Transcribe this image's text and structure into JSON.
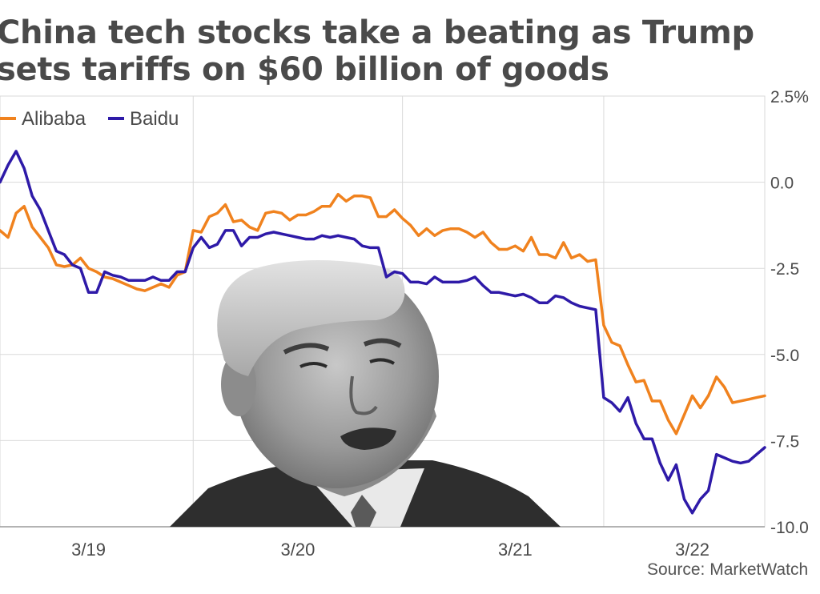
{
  "title": "China tech stocks take a beating as Trump\nsets tariffs on $60 billion of goods",
  "source": "Source: MarketWatch",
  "colors": {
    "alibaba": "#f0821e",
    "baidu": "#2e1aa8",
    "grid": "#d9d9d9",
    "text": "#4a4a4a"
  },
  "photo": {
    "subject": "portrait-photo",
    "description_icon": "person-portrait-icon"
  },
  "chart_data": {
    "type": "line",
    "title": "China tech stocks take a beating as Trump sets tariffs on $60 billion of goods",
    "xlabel": "",
    "ylabel": "",
    "ylim": [
      -10.0,
      2.5
    ],
    "yticks": [
      2.5,
      0.0,
      -2.5,
      -5.0,
      -7.5,
      -10.0
    ],
    "ytick_labels": [
      "2.5%",
      "0.0",
      "-2.5",
      "-5.0",
      "-7.5",
      "-10.0"
    ],
    "xlim": [
      0,
      4.75
    ],
    "xticks": [
      0.55,
      1.85,
      3.2,
      4.3
    ],
    "xtick_labels": [
      "3/19",
      "3/20",
      "3/21",
      "3/22"
    ],
    "legend": "top-left",
    "grid": true,
    "series": [
      {
        "name": "Alibaba",
        "x": [
          0,
          0.05,
          0.1,
          0.15,
          0.2,
          0.25,
          0.3,
          0.35,
          0.4,
          0.45,
          0.5,
          0.55,
          0.6,
          0.65,
          0.7,
          0.75,
          0.8,
          0.85,
          0.9,
          0.95,
          1.0,
          1.05,
          1.1,
          1.15,
          1.2,
          1.25,
          1.3,
          1.35,
          1.4,
          1.45,
          1.5,
          1.55,
          1.6,
          1.65,
          1.7,
          1.75,
          1.8,
          1.85,
          1.9,
          1.95,
          2.0,
          2.05,
          2.1,
          2.15,
          2.2,
          2.25,
          2.3,
          2.35,
          2.4,
          2.45,
          2.5,
          2.55,
          2.6,
          2.65,
          2.7,
          2.75,
          2.8,
          2.85,
          2.9,
          2.95,
          3.0,
          3.05,
          3.1,
          3.15,
          3.2,
          3.25,
          3.3,
          3.35,
          3.4,
          3.45,
          3.5,
          3.55,
          3.6,
          3.65,
          3.7,
          3.75,
          3.8,
          3.85,
          3.9,
          3.95,
          4.0,
          4.05,
          4.1,
          4.15,
          4.2,
          4.25,
          4.3,
          4.35,
          4.4,
          4.45,
          4.5,
          4.55,
          4.6,
          4.65,
          4.7,
          4.75
        ],
        "values": [
          -1.4,
          -1.6,
          -0.9,
          -0.7,
          -1.3,
          -1.6,
          -1.9,
          -2.4,
          -2.45,
          -2.4,
          -2.2,
          -2.5,
          -2.6,
          -2.75,
          -2.8,
          -2.9,
          -3.0,
          -3.1,
          -3.15,
          -3.05,
          -2.95,
          -3.05,
          -2.7,
          -2.6,
          -1.4,
          -1.45,
          -1.0,
          -0.9,
          -0.65,
          -1.15,
          -1.1,
          -1.3,
          -1.4,
          -0.9,
          -0.85,
          -0.9,
          -1.1,
          -0.95,
          -0.95,
          -0.85,
          -0.7,
          -0.7,
          -0.35,
          -0.55,
          -0.4,
          -0.4,
          -0.45,
          -1.0,
          -1.0,
          -0.8,
          -1.05,
          -1.25,
          -1.55,
          -1.35,
          -1.55,
          -1.4,
          -1.35,
          -1.35,
          -1.45,
          -1.6,
          -1.45,
          -1.75,
          -1.95,
          -1.95,
          -1.85,
          -2.0,
          -1.6,
          -2.1,
          -2.1,
          -2.2,
          -1.75,
          -2.2,
          -2.1,
          -2.3,
          -2.25,
          -4.15,
          -4.65,
          -4.75,
          -5.3,
          -5.8,
          -5.75,
          -6.35,
          -6.35,
          -6.9,
          -7.3,
          -6.75,
          -6.2,
          -6.55,
          -6.2,
          -5.65,
          -5.95,
          -6.4,
          -6.35,
          -6.3,
          -6.25,
          -6.2
        ]
      },
      {
        "name": "Baidu",
        "x": [
          0,
          0.05,
          0.1,
          0.15,
          0.2,
          0.25,
          0.3,
          0.35,
          0.4,
          0.45,
          0.5,
          0.55,
          0.6,
          0.65,
          0.7,
          0.75,
          0.8,
          0.85,
          0.9,
          0.95,
          1.0,
          1.05,
          1.1,
          1.15,
          1.2,
          1.25,
          1.3,
          1.35,
          1.4,
          1.45,
          1.5,
          1.55,
          1.6,
          1.65,
          1.7,
          1.75,
          1.8,
          1.85,
          1.9,
          1.95,
          2.0,
          2.05,
          2.1,
          2.15,
          2.2,
          2.25,
          2.3,
          2.35,
          2.4,
          2.45,
          2.5,
          2.55,
          2.6,
          2.65,
          2.7,
          2.75,
          2.8,
          2.85,
          2.9,
          2.95,
          3.0,
          3.05,
          3.1,
          3.15,
          3.2,
          3.25,
          3.3,
          3.35,
          3.4,
          3.45,
          3.5,
          3.55,
          3.6,
          3.65,
          3.7,
          3.75,
          3.8,
          3.85,
          3.9,
          3.95,
          4.0,
          4.05,
          4.1,
          4.15,
          4.2,
          4.25,
          4.3,
          4.35,
          4.4,
          4.45,
          4.5,
          4.55,
          4.6,
          4.65,
          4.7,
          4.75
        ],
        "values": [
          0.0,
          0.5,
          0.9,
          0.4,
          -0.4,
          -0.8,
          -1.4,
          -2.0,
          -2.1,
          -2.4,
          -2.5,
          -3.2,
          -3.2,
          -2.6,
          -2.7,
          -2.75,
          -2.85,
          -2.85,
          -2.85,
          -2.75,
          -2.85,
          -2.85,
          -2.6,
          -2.6,
          -1.9,
          -1.6,
          -1.9,
          -1.8,
          -1.4,
          -1.4,
          -1.85,
          -1.6,
          -1.6,
          -1.5,
          -1.45,
          -1.5,
          -1.55,
          -1.6,
          -1.65,
          -1.65,
          -1.55,
          -1.6,
          -1.55,
          -1.6,
          -1.65,
          -1.85,
          -1.9,
          -1.9,
          -2.75,
          -2.6,
          -2.65,
          -2.9,
          -2.9,
          -2.95,
          -2.75,
          -2.9,
          -2.9,
          -2.9,
          -2.85,
          -2.75,
          -3.0,
          -3.2,
          -3.2,
          -3.25,
          -3.3,
          -3.25,
          -3.35,
          -3.5,
          -3.5,
          -3.3,
          -3.35,
          -3.5,
          -3.6,
          -3.65,
          -3.7,
          -6.25,
          -6.4,
          -6.65,
          -6.25,
          -7.0,
          -7.45,
          -7.45,
          -8.15,
          -8.65,
          -8.2,
          -9.2,
          -9.6,
          -9.2,
          -8.95,
          -7.9,
          -8.0,
          -8.1,
          -8.15,
          -8.1,
          -7.9,
          -7.7
        ]
      }
    ]
  }
}
